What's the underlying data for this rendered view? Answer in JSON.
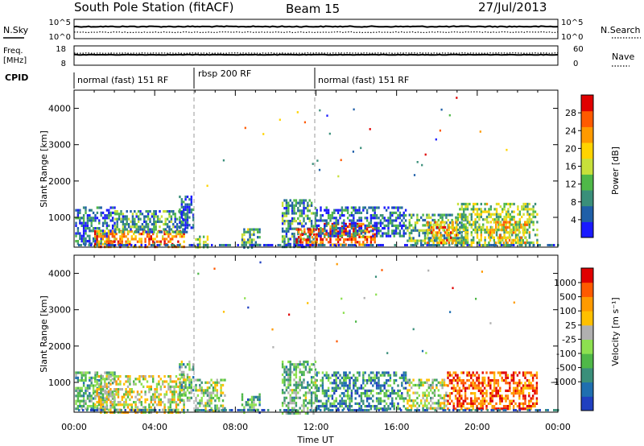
{
  "header": {
    "station": "South Pole Station (fitACF)",
    "beam": "Beam 15",
    "date": "27/Jul/2013"
  },
  "strip_panels": {
    "nsky_label": "N.Sky",
    "nsky_ticks": [
      "10^5",
      "10^0"
    ],
    "nsearch_label": "N.Search",
    "nsearch_ticks": [
      "10^5",
      "10^0"
    ],
    "freq_label_1": "Freq.",
    "freq_label_2": "[MHz]",
    "freq_ticks": [
      "18",
      "8"
    ],
    "nave_label": "Nave",
    "nave_ticks": [
      "60",
      "0"
    ],
    "cpid_label": "CPID"
  },
  "cpid_segments": [
    {
      "label": "normal (fast) 151 RF",
      "start_h": 0,
      "end_h": 6
    },
    {
      "label": "rbsp 200 RF",
      "start_h": 6,
      "end_h": 12
    },
    {
      "label": "normal (fast) 151 RF",
      "start_h": 12,
      "end_h": 24
    }
  ],
  "chart_data": [
    {
      "type": "heatmap",
      "name": "power",
      "ylabel": "Slant Range [km]",
      "yticks": [
        "4000",
        "3000",
        "2000",
        "1000"
      ],
      "ylim": [
        180,
        4500
      ],
      "colorbar_label": "Power [dB]",
      "colorbar_ticks": [
        "28",
        "24",
        "20",
        "16",
        "12",
        "8",
        "4"
      ],
      "colorbar_range": [
        0,
        32
      ],
      "colors": [
        "#1a1aff",
        "#1f5fa8",
        "#3a8f7a",
        "#4fb848",
        "#c8e03a",
        "#ffd400",
        "#ff9a00",
        "#ff5a00",
        "#e00000"
      ],
      "scatter_blobs": [
        {
          "t0": 0.05,
          "t1": 2.0,
          "r0": 300,
          "r1": 1300,
          "level": 0.2
        },
        {
          "t0": 1.0,
          "t1": 5.5,
          "r0": 180,
          "r1": 650,
          "level": 0.75
        },
        {
          "t0": 2.0,
          "t1": 5.6,
          "r0": 600,
          "r1": 1200,
          "level": 0.3
        },
        {
          "t0": 5.2,
          "t1": 5.9,
          "r0": 700,
          "r1": 1600,
          "level": 0.15
        },
        {
          "t0": 6.0,
          "t1": 6.6,
          "r0": 180,
          "r1": 500,
          "level": 0.45
        },
        {
          "t0": 8.3,
          "t1": 9.2,
          "r0": 180,
          "r1": 700,
          "level": 0.35
        },
        {
          "t0": 10.3,
          "t1": 12.0,
          "r0": 180,
          "r1": 1500,
          "level": 0.3
        },
        {
          "t0": 11.0,
          "t1": 12.0,
          "r0": 250,
          "r1": 700,
          "level": 0.85
        },
        {
          "t0": 12.0,
          "t1": 15.0,
          "r0": 250,
          "r1": 850,
          "level": 0.85
        },
        {
          "t0": 12.0,
          "t1": 16.5,
          "r0": 500,
          "r1": 1300,
          "level": 0.2
        },
        {
          "t0": 16.5,
          "t1": 19.5,
          "r0": 300,
          "r1": 1100,
          "level": 0.35
        },
        {
          "t0": 17.5,
          "t1": 19.0,
          "r0": 300,
          "r1": 900,
          "level": 0.7
        },
        {
          "t0": 19.0,
          "t1": 23.0,
          "r0": 250,
          "r1": 1400,
          "level": 0.45
        },
        {
          "t0": 20.5,
          "t1": 22.5,
          "r0": 300,
          "r1": 900,
          "level": 0.65
        }
      ]
    },
    {
      "type": "heatmap",
      "name": "velocity",
      "ylabel": "Slant Range [km]",
      "yticks": [
        "4000",
        "3000",
        "2000",
        "1000"
      ],
      "ylim": [
        180,
        4500
      ],
      "xlabel": "Time UT",
      "xticks": [
        "00:00",
        "04:00",
        "08:00",
        "12:00",
        "16:00",
        "20:00",
        "00:00"
      ],
      "colorbar_label": "Velocity [m s⁻¹]",
      "colorbar_ticks": [
        "1000",
        "500",
        "100",
        "25",
        "-25",
        "-100",
        "-500",
        "-1000"
      ],
      "colors": [
        "#2040c0",
        "#1f6fb0",
        "#3a8f7a",
        "#4fb848",
        "#8de050",
        "#b0b0b0",
        "#ffc000",
        "#ff9a00",
        "#ff5a00",
        "#e00000"
      ],
      "scatter_blobs": [
        {
          "t0": 0.05,
          "t1": 2.0,
          "r0": 300,
          "r1": 1300,
          "level": 0.35
        },
        {
          "t0": 1.0,
          "t1": 5.5,
          "r0": 180,
          "r1": 1200,
          "level": 0.55
        },
        {
          "t0": 5.2,
          "t1": 5.9,
          "r0": 500,
          "r1": 1600,
          "level": 0.4
        },
        {
          "t0": 6.0,
          "t1": 7.5,
          "r0": 180,
          "r1": 1100,
          "level": 0.45
        },
        {
          "t0": 8.3,
          "t1": 9.2,
          "r0": 180,
          "r1": 700,
          "level": 0.3
        },
        {
          "t0": 10.3,
          "t1": 12.0,
          "r0": 180,
          "r1": 1600,
          "level": 0.4
        },
        {
          "t0": 12.0,
          "t1": 16.5,
          "r0": 250,
          "r1": 1300,
          "level": 0.25
        },
        {
          "t0": 16.5,
          "t1": 18.5,
          "r0": 300,
          "r1": 1100,
          "level": 0.5
        },
        {
          "t0": 18.5,
          "t1": 23.0,
          "r0": 250,
          "r1": 1300,
          "level": 0.85
        }
      ]
    }
  ]
}
